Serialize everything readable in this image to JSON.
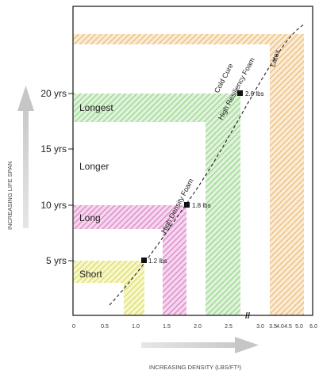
{
  "chart_data": {
    "type": "area",
    "xlabel": "INCREASING DENSITY (LBS/FT³)",
    "ylabel": "INCREASING LIFE SPAN",
    "x_ticks": [
      "0",
      "0.5",
      "1.0",
      "1.5",
      "2.0",
      "2.5",
      "3.0",
      "3.5",
      "4.0",
      "4.5",
      "5.0",
      "6.0"
    ],
    "y_ticks": [
      "5 yrs",
      "10 yrs",
      "15 yrs",
      "20 yrs"
    ],
    "axis_break": "//",
    "bands": [
      {
        "id": "short",
        "label": "Short",
        "color": "#eaea88",
        "density_range": [
          0.75,
          1.1
        ],
        "life_top_yrs": 5
      },
      {
        "id": "long",
        "label": "Long",
        "color": "#e48fd0",
        "density_range": [
          1.45,
          1.8
        ],
        "life_top_yrs": 10
      },
      {
        "id": "longer",
        "label": "Longer",
        "color": "#ffffff",
        "density_range": [
          1.8,
          2.1
        ],
        "life_top_yrs": 15
      },
      {
        "id": "longest",
        "label": "Longest",
        "color": "#9fdc93",
        "density_range": [
          2.1,
          2.6
        ],
        "life_top_yrs": 20
      },
      {
        "id": "latex",
        "label": "",
        "color": "#f1c68a",
        "density_range": [
          3.4,
          5.0
        ],
        "life_top_yrs": 24
      }
    ],
    "curve_labels": [
      "High Density Foam",
      "High Resiliency Foam",
      "Cold Cure",
      "Latex"
    ],
    "markers": [
      {
        "label": "1.2 lbs",
        "density": 1.2,
        "life_yrs": 5
      },
      {
        "label": "1.8 lbs",
        "density": 1.8,
        "life_yrs": 10
      },
      {
        "label": "2.6 lbs",
        "density": 2.6,
        "life_yrs": 20
      }
    ],
    "xlim": [
      0,
      6.0
    ],
    "ylim_yrs": [
      0,
      25
    ],
    "grid": false,
    "legend": "none"
  }
}
